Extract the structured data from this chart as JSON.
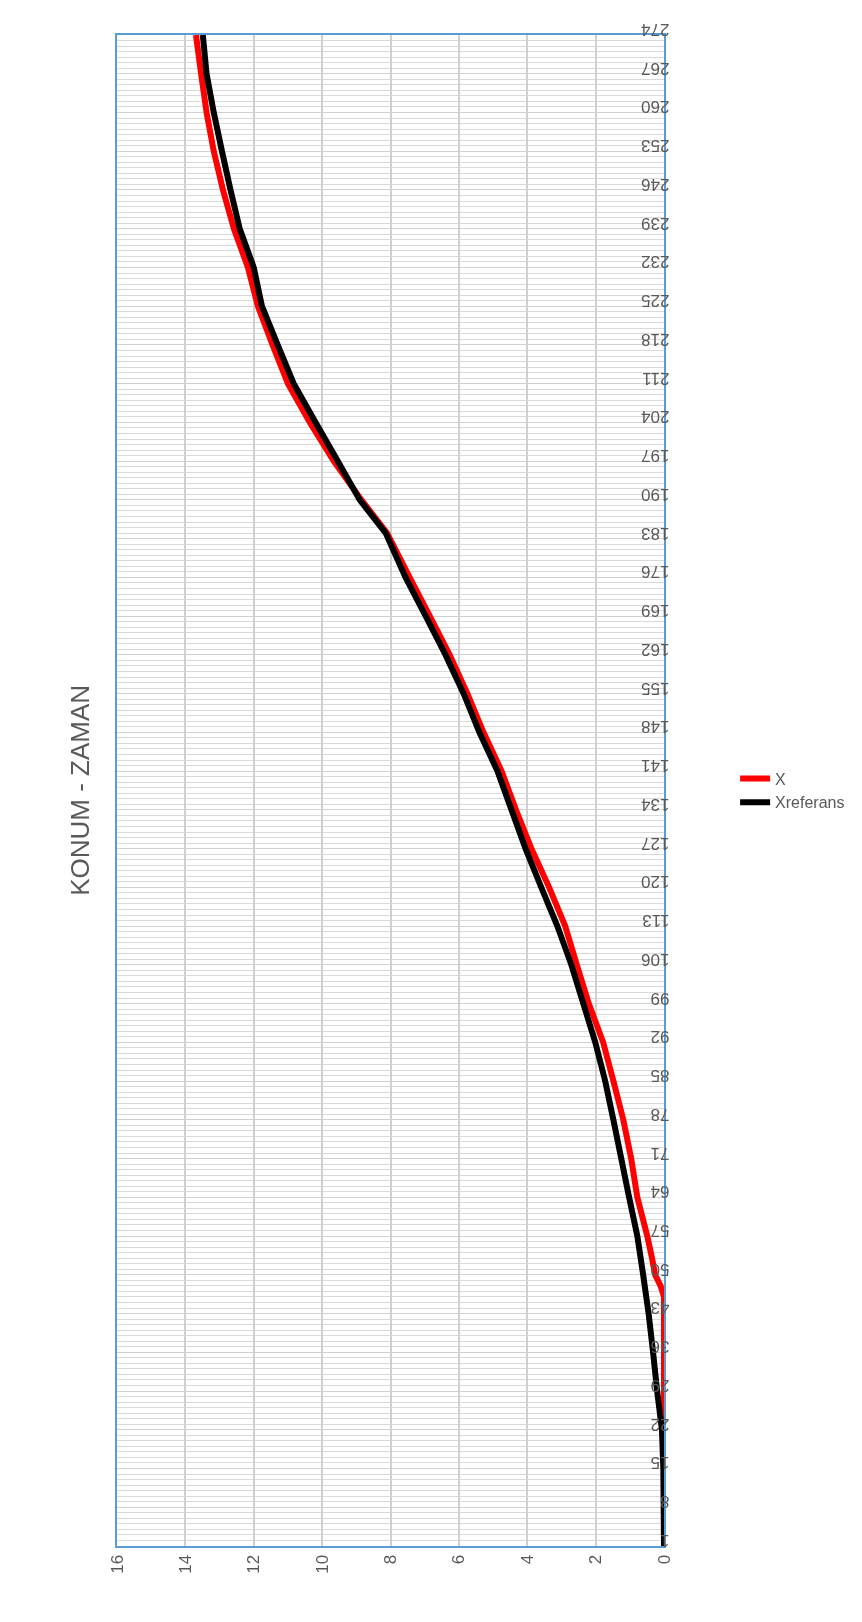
{
  "chart_data": {
    "type": "line",
    "title": "KONUM - ZAMAN",
    "series": [
      {
        "name": "X",
        "color": "#ff0000",
        "x": [
          1,
          15,
          29,
          43,
          46,
          48,
          50,
          53,
          57,
          64,
          71,
          78,
          85,
          92,
          99,
          106,
          113,
          120,
          127,
          134,
          141,
          148,
          155,
          162,
          169,
          176,
          184,
          190,
          197,
          204,
          211,
          218,
          225,
          232,
          239,
          246,
          253,
          260,
          267,
          274
        ],
        "values": [
          0,
          0,
          0,
          0,
          0,
          0.1,
          0.26,
          0.35,
          0.49,
          0.78,
          0.96,
          1.19,
          1.48,
          1.78,
          2.2,
          2.55,
          2.89,
          3.36,
          3.88,
          4.33,
          4.75,
          5.28,
          5.75,
          6.27,
          6.85,
          7.44,
          8.1,
          8.85,
          9.66,
          10.36,
          11.0,
          11.45,
          11.88,
          12.17,
          12.58,
          12.9,
          13.17,
          13.38,
          13.54,
          13.69
        ]
      },
      {
        "name": "Xreferans",
        "color": "#000000",
        "x": [
          1,
          15,
          22,
          29,
          36,
          43,
          50,
          57,
          64,
          71,
          78,
          85,
          92,
          99,
          106,
          113,
          120,
          127,
          134,
          141,
          148,
          155,
          162,
          169,
          176,
          184,
          190,
          197,
          204,
          211,
          218,
          225,
          232,
          239,
          246,
          253,
          260,
          267,
          274
        ],
        "values": [
          0,
          0.02,
          0.06,
          0.2,
          0.32,
          0.45,
          0.61,
          0.78,
          1.02,
          1.25,
          1.48,
          1.72,
          2.01,
          2.36,
          2.71,
          3.12,
          3.59,
          4.05,
          4.46,
          4.87,
          5.4,
          5.86,
          6.39,
          6.97,
          7.56,
          8.14,
          8.9,
          9.54,
          10.19,
          10.83,
          11.3,
          11.76,
          12.0,
          12.41,
          12.68,
          12.93,
          13.17,
          13.38,
          13.49
        ]
      }
    ],
    "orientation": "horizontal",
    "xlim": [
      16,
      0
    ],
    "xticks": [
      0,
      2,
      4,
      6,
      8,
      10,
      12,
      14,
      16
    ],
    "ylim": [
      1,
      274
    ],
    "yticks": [
      1,
      8,
      15,
      22,
      29,
      36,
      43,
      50,
      57,
      64,
      71,
      78,
      85,
      92,
      99,
      106,
      113,
      120,
      127,
      134,
      141,
      148,
      155,
      162,
      169,
      176,
      183,
      190,
      197,
      204,
      211,
      218,
      225,
      232,
      239,
      246,
      253,
      260,
      267,
      274
    ],
    "grid": true,
    "legend": "right"
  }
}
